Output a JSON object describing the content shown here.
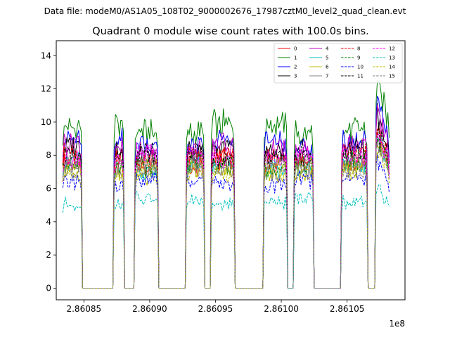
{
  "suptitle": "Data file: modeM0/AS1A05_108T02_9000002676_17987cztM0_level2_quad_clean.evt",
  "chart_data": {
    "type": "line",
    "title": "Quadrant 0 module wise count rates with 100.0s bins.",
    "xlabel": "",
    "ylabel": "",
    "x_offset_label": "1e8",
    "x_unit_scale": 100000000,
    "xlim": [
      286082900,
      286109400
    ],
    "ylim": [
      -0.7,
      14.9
    ],
    "x_ticks": [
      286085000,
      286090000,
      286095000,
      286100000,
      286105000
    ],
    "x_tick_labels": [
      "2.86085",
      "2.86090",
      "2.86095",
      "2.86100",
      "2.86105"
    ],
    "y_ticks": [
      0,
      2,
      4,
      6,
      8,
      10,
      12,
      14
    ],
    "y_tick_labels": [
      "0",
      "2",
      "4",
      "6",
      "8",
      "10",
      "12",
      "14"
    ],
    "grid": false,
    "legend_position": "top-right",
    "legend_columns": 4,
    "x_start": 286083400,
    "x_step": 100,
    "on_segments": [
      [
        286083400,
        286084800
      ],
      [
        286087300,
        286088000
      ],
      [
        286088900,
        286090600
      ],
      [
        286092800,
        286094100
      ],
      [
        286094700,
        286096400
      ],
      [
        286098700,
        286100400
      ],
      [
        286101000,
        286102400
      ],
      [
        286104600,
        286106500
      ],
      [
        286107200,
        286108200
      ]
    ],
    "series": [
      {
        "name": "0",
        "color": "#ff0000",
        "dash": "solid",
        "level": 7.6
      },
      {
        "name": "1",
        "color": "#008000",
        "dash": "solid",
        "level": 9.6
      },
      {
        "name": "2",
        "color": "#0000ff",
        "dash": "solid",
        "level": 8.7
      },
      {
        "name": "3",
        "color": "#000000",
        "dash": "solid",
        "level": 8.2
      },
      {
        "name": "4",
        "color": "#bf00bf",
        "dash": "solid",
        "level": 8.4
      },
      {
        "name": "5",
        "color": "#00bfbf",
        "dash": "solid",
        "level": 7.3
      },
      {
        "name": "6",
        "color": "#bfbf00",
        "dash": "solid",
        "level": 7.0
      },
      {
        "name": "7",
        "color": "#808080",
        "dash": "solid",
        "level": 7.2
      },
      {
        "name": "8",
        "color": "#ff0000",
        "dash": "dashed",
        "level": 7.8
      },
      {
        "name": "9",
        "color": "#008000",
        "dash": "dashed",
        "level": 7.4
      },
      {
        "name": "10",
        "color": "#0000ff",
        "dash": "dashed",
        "level": 6.4
      },
      {
        "name": "11",
        "color": "#000000",
        "dash": "dashed",
        "level": 8.0
      },
      {
        "name": "12",
        "color": "#ff00ff",
        "dash": "dashed",
        "level": 7.9
      },
      {
        "name": "13",
        "color": "#00bfbf",
        "dash": "dashed",
        "level": 5.2
      },
      {
        "name": "14",
        "color": "#bfbf00",
        "dash": "dashed",
        "level": 7.1
      },
      {
        "name": "15",
        "color": "#808080",
        "dash": "dashed",
        "level": 7.3
      }
    ]
  }
}
